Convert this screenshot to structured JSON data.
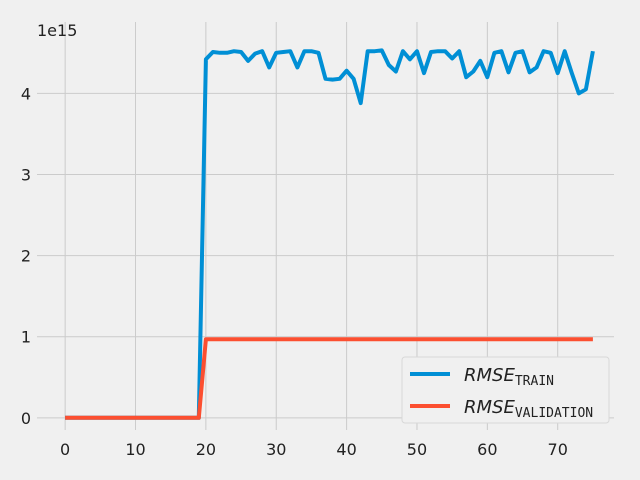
{
  "chart_data": {
    "type": "line",
    "title": "",
    "xlabel": "",
    "ylabel": "",
    "y_offset_label": "1e15",
    "xlim": [
      -4,
      78
    ],
    "ylim": [
      -0.15,
      4.88
    ],
    "x_ticks": [
      0,
      10,
      20,
      30,
      40,
      50,
      60,
      70
    ],
    "y_ticks": [
      0,
      1,
      2,
      3,
      4
    ],
    "grid": true,
    "legend_position": "bottom-right",
    "series": [
      {
        "name_main": "RMSE",
        "name_sub": "TRAIN",
        "color": "#008fd5",
        "x": [
          0,
          1,
          2,
          3,
          4,
          5,
          6,
          7,
          8,
          9,
          10,
          11,
          12,
          13,
          14,
          15,
          16,
          17,
          18,
          19,
          20,
          21,
          22,
          23,
          24,
          25,
          26,
          27,
          28,
          29,
          30,
          31,
          32,
          33,
          34,
          35,
          36,
          37,
          38,
          39,
          40,
          41,
          42,
          43,
          44,
          45,
          46,
          47,
          48,
          49,
          50,
          51,
          52,
          53,
          54,
          55,
          56,
          57,
          58,
          59,
          60,
          61,
          62,
          63,
          64,
          65,
          66,
          67,
          68,
          69,
          70,
          71,
          72,
          73,
          74,
          75
        ],
        "y": [
          0,
          0,
          0,
          0,
          0,
          0,
          0,
          0,
          0,
          0,
          0,
          0,
          0,
          0,
          0,
          0,
          0,
          0,
          0,
          0,
          4.42,
          4.51,
          4.5,
          4.5,
          4.52,
          4.51,
          4.4,
          4.49,
          4.52,
          4.32,
          4.5,
          4.51,
          4.52,
          4.32,
          4.52,
          4.52,
          4.5,
          4.18,
          4.17,
          4.18,
          4.28,
          4.18,
          3.88,
          4.52,
          4.52,
          4.53,
          4.35,
          4.27,
          4.52,
          4.42,
          4.52,
          4.25,
          4.51,
          4.52,
          4.52,
          4.43,
          4.52,
          4.2,
          4.27,
          4.4,
          4.2,
          4.5,
          4.52,
          4.26,
          4.5,
          4.52,
          4.26,
          4.32,
          4.52,
          4.5,
          4.25,
          4.52,
          4.25,
          4.0,
          4.05,
          4.52
        ]
      },
      {
        "name_main": "RMSE",
        "name_sub": "VALIDATION",
        "color": "#fc4f30",
        "x": [
          0,
          1,
          2,
          3,
          4,
          5,
          6,
          7,
          8,
          9,
          10,
          11,
          12,
          13,
          14,
          15,
          16,
          17,
          18,
          19,
          20,
          21,
          22,
          23,
          24,
          25,
          26,
          27,
          28,
          29,
          30,
          31,
          32,
          33,
          34,
          35,
          36,
          37,
          38,
          39,
          40,
          41,
          42,
          43,
          44,
          45,
          46,
          47,
          48,
          49,
          50,
          51,
          52,
          53,
          54,
          55,
          56,
          57,
          58,
          59,
          60,
          61,
          62,
          63,
          64,
          65,
          66,
          67,
          68,
          69,
          70,
          71,
          72,
          73,
          74,
          75
        ],
        "y": [
          0,
          0,
          0,
          0,
          0,
          0,
          0,
          0,
          0,
          0,
          0,
          0,
          0,
          0,
          0,
          0,
          0,
          0,
          0,
          0,
          0.97,
          0.97,
          0.97,
          0.97,
          0.97,
          0.97,
          0.97,
          0.97,
          0.97,
          0.97,
          0.97,
          0.97,
          0.97,
          0.97,
          0.97,
          0.97,
          0.97,
          0.97,
          0.97,
          0.97,
          0.97,
          0.97,
          0.97,
          0.97,
          0.97,
          0.97,
          0.97,
          0.97,
          0.97,
          0.97,
          0.97,
          0.97,
          0.97,
          0.97,
          0.97,
          0.97,
          0.97,
          0.97,
          0.97,
          0.97,
          0.97,
          0.97,
          0.97,
          0.97,
          0.97,
          0.97,
          0.97,
          0.97,
          0.97,
          0.97,
          0.97,
          0.97,
          0.97,
          0.97,
          0.97,
          0.97
        ]
      }
    ]
  }
}
